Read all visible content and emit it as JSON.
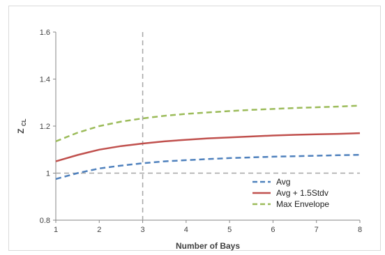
{
  "chart_data": {
    "type": "line",
    "xlabel": "Number of Bays",
    "ylabel": "Z",
    "ylabel_subscript": "CL",
    "xlim": [
      1,
      8
    ],
    "ylim": [
      0.8,
      1.6
    ],
    "xticks": [
      "1",
      "2",
      "3",
      "4",
      "5",
      "6",
      "7",
      "8"
    ],
    "yticks": [
      "0.8",
      "1",
      "1.2",
      "1.4",
      "1.6"
    ],
    "x": [
      1,
      1.5,
      2,
      2.5,
      3,
      3.5,
      4,
      4.5,
      5,
      5.5,
      6,
      6.5,
      7,
      7.5,
      8
    ],
    "series": [
      {
        "name": "Avg",
        "color": "#4f81bd",
        "dash": true,
        "values": [
          0.975,
          1.0,
          1.02,
          1.032,
          1.042,
          1.05,
          1.055,
          1.06,
          1.064,
          1.067,
          1.07,
          1.072,
          1.074,
          1.076,
          1.078
        ]
      },
      {
        "name": "Avg + 1.5Stdv",
        "color": "#c0504d",
        "dash": false,
        "values": [
          1.05,
          1.077,
          1.1,
          1.115,
          1.126,
          1.135,
          1.142,
          1.148,
          1.152,
          1.156,
          1.16,
          1.163,
          1.165,
          1.167,
          1.17
        ]
      },
      {
        "name": "Max Envelope",
        "color": "#9bbb59",
        "dash": true,
        "values": [
          1.135,
          1.172,
          1.2,
          1.219,
          1.233,
          1.244,
          1.252,
          1.258,
          1.264,
          1.269,
          1.273,
          1.277,
          1.28,
          1.283,
          1.287
        ]
      }
    ],
    "reference_lines": [
      {
        "axis": "x",
        "value": 3,
        "color": "#a6a6a6"
      },
      {
        "axis": "y",
        "value": 1,
        "color": "#a6a6a6"
      }
    ],
    "grid": false,
    "legend_position": "bottom-right"
  }
}
